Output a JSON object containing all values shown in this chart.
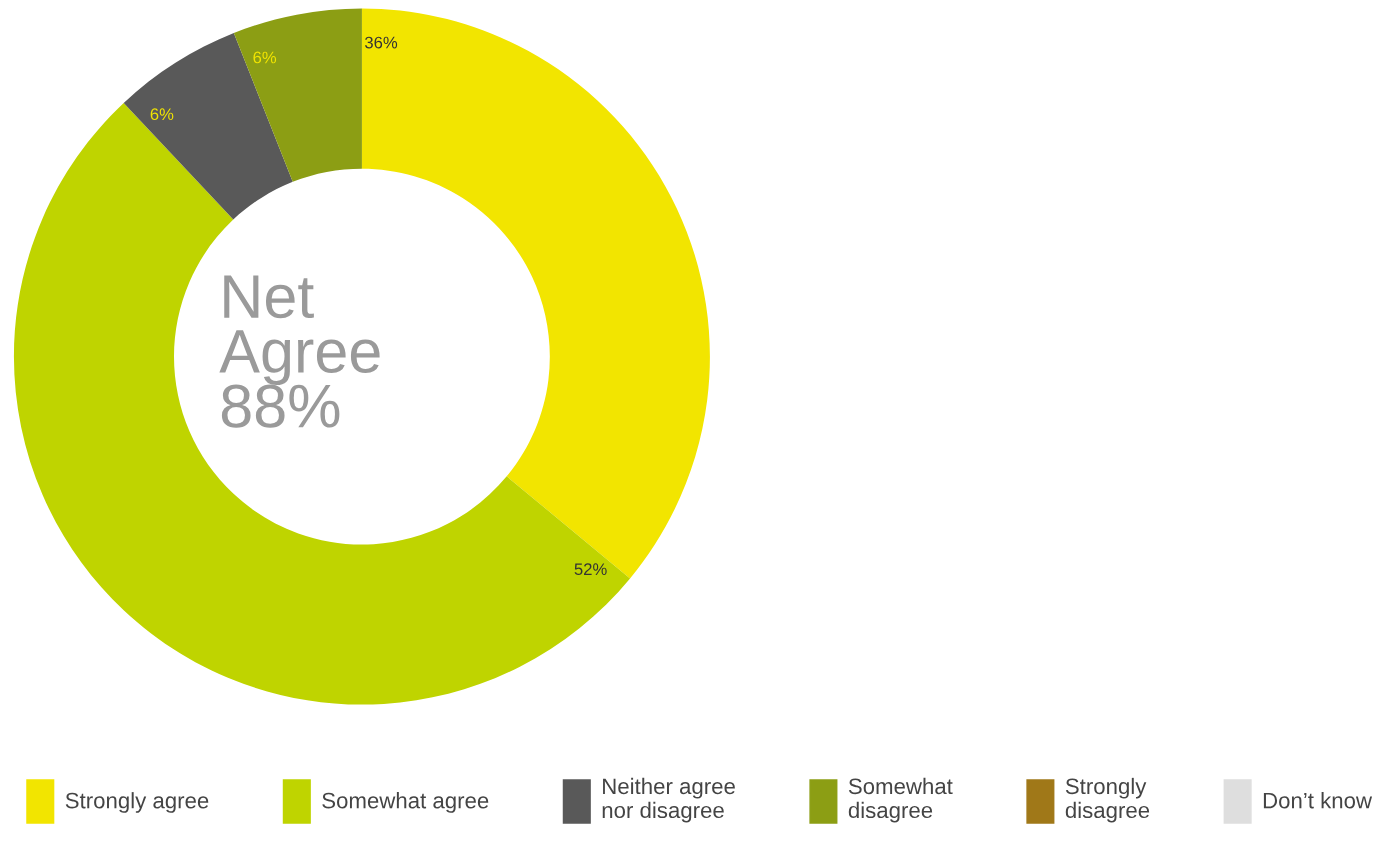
{
  "chart_data": {
    "type": "donut",
    "categories": [
      "Strongly agree",
      "Somewhat agree",
      "Neither agree nor disagree",
      "Somewhat disagree",
      "Strongly disagree",
      "Don’t know"
    ],
    "values": [
      36,
      52,
      6,
      6,
      0,
      0
    ],
    "colors": [
      "#f2e500",
      "#bfd400",
      "#595959",
      "#8c9e14",
      "#a07818",
      "#dedede"
    ],
    "value_labels": [
      "36%",
      "52%",
      "6%",
      "6%",
      null,
      null
    ],
    "annotations": [
      "Net\nAgree\n88%"
    ],
    "legend": "bottom"
  }
}
